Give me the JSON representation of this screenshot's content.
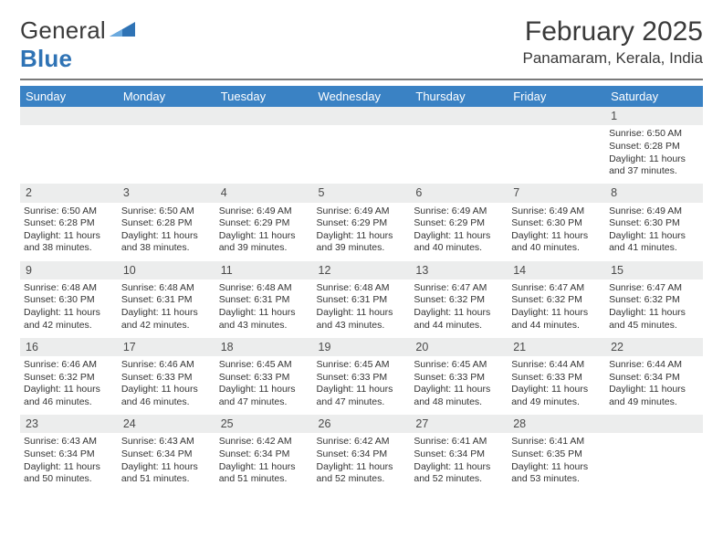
{
  "logo": {
    "text_part1": "General",
    "text_part2": "Blue"
  },
  "title": "February 2025",
  "location": "Panamaram, Kerala, India",
  "colors": {
    "header_bg": "#3a82c4",
    "header_text": "#ffffff",
    "daynum_bg": "#eceded",
    "rule": "#7a7a7a",
    "text": "#333333",
    "logo_blue": "#2f73b5"
  },
  "dayHeaders": [
    "Sunday",
    "Monday",
    "Tuesday",
    "Wednesday",
    "Thursday",
    "Friday",
    "Saturday"
  ],
  "weeks": [
    {
      "nums": [
        "",
        "",
        "",
        "",
        "",
        "",
        "1"
      ],
      "detail": [
        "",
        "",
        "",
        "",
        "",
        "",
        "Sunrise: 6:50 AM\nSunset: 6:28 PM\nDaylight: 11 hours and 37 minutes."
      ]
    },
    {
      "nums": [
        "2",
        "3",
        "4",
        "5",
        "6",
        "7",
        "8"
      ],
      "detail": [
        "Sunrise: 6:50 AM\nSunset: 6:28 PM\nDaylight: 11 hours and 38 minutes.",
        "Sunrise: 6:50 AM\nSunset: 6:28 PM\nDaylight: 11 hours and 38 minutes.",
        "Sunrise: 6:49 AM\nSunset: 6:29 PM\nDaylight: 11 hours and 39 minutes.",
        "Sunrise: 6:49 AM\nSunset: 6:29 PM\nDaylight: 11 hours and 39 minutes.",
        "Sunrise: 6:49 AM\nSunset: 6:29 PM\nDaylight: 11 hours and 40 minutes.",
        "Sunrise: 6:49 AM\nSunset: 6:30 PM\nDaylight: 11 hours and 40 minutes.",
        "Sunrise: 6:49 AM\nSunset: 6:30 PM\nDaylight: 11 hours and 41 minutes."
      ]
    },
    {
      "nums": [
        "9",
        "10",
        "11",
        "12",
        "13",
        "14",
        "15"
      ],
      "detail": [
        "Sunrise: 6:48 AM\nSunset: 6:30 PM\nDaylight: 11 hours and 42 minutes.",
        "Sunrise: 6:48 AM\nSunset: 6:31 PM\nDaylight: 11 hours and 42 minutes.",
        "Sunrise: 6:48 AM\nSunset: 6:31 PM\nDaylight: 11 hours and 43 minutes.",
        "Sunrise: 6:48 AM\nSunset: 6:31 PM\nDaylight: 11 hours and 43 minutes.",
        "Sunrise: 6:47 AM\nSunset: 6:32 PM\nDaylight: 11 hours and 44 minutes.",
        "Sunrise: 6:47 AM\nSunset: 6:32 PM\nDaylight: 11 hours and 44 minutes.",
        "Sunrise: 6:47 AM\nSunset: 6:32 PM\nDaylight: 11 hours and 45 minutes."
      ]
    },
    {
      "nums": [
        "16",
        "17",
        "18",
        "19",
        "20",
        "21",
        "22"
      ],
      "detail": [
        "Sunrise: 6:46 AM\nSunset: 6:32 PM\nDaylight: 11 hours and 46 minutes.",
        "Sunrise: 6:46 AM\nSunset: 6:33 PM\nDaylight: 11 hours and 46 minutes.",
        "Sunrise: 6:45 AM\nSunset: 6:33 PM\nDaylight: 11 hours and 47 minutes.",
        "Sunrise: 6:45 AM\nSunset: 6:33 PM\nDaylight: 11 hours and 47 minutes.",
        "Sunrise: 6:45 AM\nSunset: 6:33 PM\nDaylight: 11 hours and 48 minutes.",
        "Sunrise: 6:44 AM\nSunset: 6:33 PM\nDaylight: 11 hours and 49 minutes.",
        "Sunrise: 6:44 AM\nSunset: 6:34 PM\nDaylight: 11 hours and 49 minutes."
      ]
    },
    {
      "nums": [
        "23",
        "24",
        "25",
        "26",
        "27",
        "28",
        ""
      ],
      "detail": [
        "Sunrise: 6:43 AM\nSunset: 6:34 PM\nDaylight: 11 hours and 50 minutes.",
        "Sunrise: 6:43 AM\nSunset: 6:34 PM\nDaylight: 11 hours and 51 minutes.",
        "Sunrise: 6:42 AM\nSunset: 6:34 PM\nDaylight: 11 hours and 51 minutes.",
        "Sunrise: 6:42 AM\nSunset: 6:34 PM\nDaylight: 11 hours and 52 minutes.",
        "Sunrise: 6:41 AM\nSunset: 6:34 PM\nDaylight: 11 hours and 52 minutes.",
        "Sunrise: 6:41 AM\nSunset: 6:35 PM\nDaylight: 11 hours and 53 minutes.",
        ""
      ]
    }
  ]
}
